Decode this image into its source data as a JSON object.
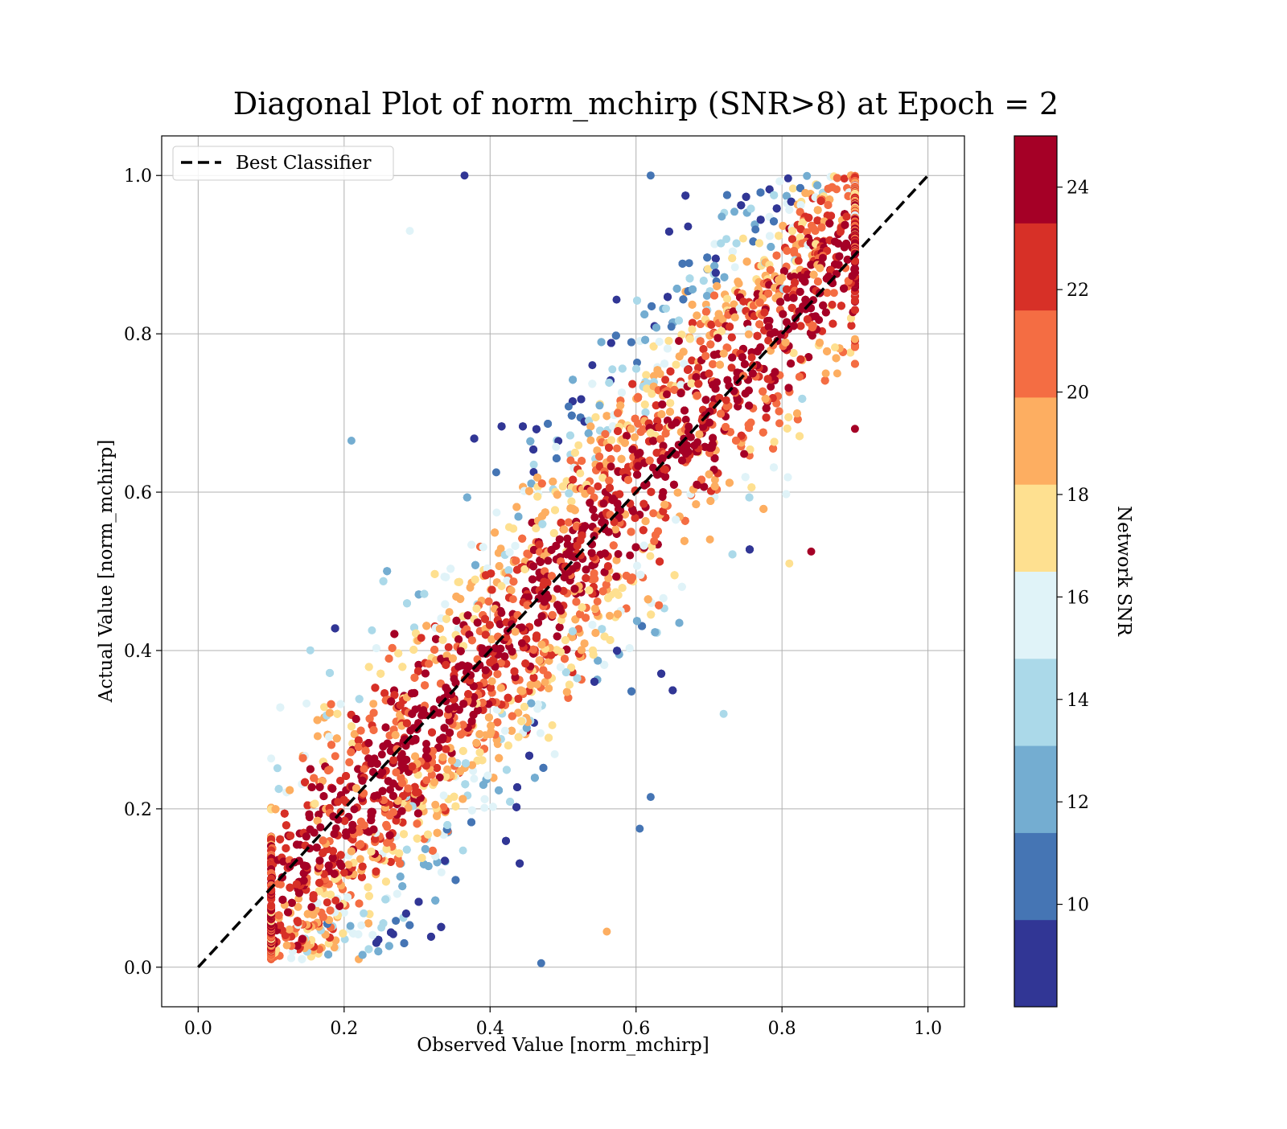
{
  "chart_data": {
    "type": "scatter",
    "title": "Diagonal Plot of norm_mchirp (SNR>8) at Epoch = 2",
    "xlabel": "Observed Value [norm_mchirp]",
    "ylabel": "Actual Value [norm_mchirp]",
    "xlim": [
      -0.05,
      1.05
    ],
    "ylim": [
      -0.05,
      1.05
    ],
    "x_ticks": [
      "0.0",
      "0.2",
      "0.4",
      "0.6",
      "0.8",
      "1.0"
    ],
    "y_ticks": [
      "0.0",
      "0.2",
      "0.4",
      "0.6",
      "0.8",
      "1.0"
    ],
    "grid": true,
    "legend": {
      "placement": "upper-left",
      "entries": [
        "Best Classifier"
      ]
    },
    "reference_line": {
      "name": "Best Classifier",
      "x": [
        0.0,
        1.0
      ],
      "y": [
        0.0,
        1.0
      ],
      "style": "dashed",
      "color": "#000000"
    },
    "colorbar": {
      "label": "Network SNR",
      "range": [
        8,
        25
      ],
      "ticks": [
        "10",
        "12",
        "14",
        "16",
        "18",
        "20",
        "22",
        "24"
      ],
      "bands": [
        {
          "from": 8,
          "to": 9.7,
          "color": "#313695"
        },
        {
          "from": 9.7,
          "to": 11.4,
          "color": "#4575b4"
        },
        {
          "from": 11.4,
          "to": 13.1,
          "color": "#74add1"
        },
        {
          "from": 13.1,
          "to": 14.8,
          "color": "#abd9e9"
        },
        {
          "from": 14.8,
          "to": 16.5,
          "color": "#e0f3f8"
        },
        {
          "from": 16.5,
          "to": 18.2,
          "color": "#fee090"
        },
        {
          "from": 18.2,
          "to": 19.9,
          "color": "#fdae61"
        },
        {
          "from": 19.9,
          "to": 21.6,
          "color": "#f46d43"
        },
        {
          "from": 21.6,
          "to": 23.3,
          "color": "#d73027"
        },
        {
          "from": 23.3,
          "to": 25,
          "color": "#a50026"
        }
      ]
    },
    "point_clusters": [
      {
        "description_x_range": [
          0.1,
          0.9
        ],
        "pattern": "dense band around y = x; high SNR (>=24) along the diagonal, lower SNR (blue) toward the band edges — upper-left for x 0.3–0.6, lower-right for x 0.4–0.6"
      }
    ],
    "sample_points": [
      {
        "x": 0.1,
        "y": 0.05,
        "snr": 24.5
      },
      {
        "x": 0.9,
        "y": 0.68,
        "snr": 24.5
      },
      {
        "x": 0.365,
        "y": 1.0,
        "snr": 9.0
      },
      {
        "x": 0.62,
        "y": 1.0,
        "snr": 11.0
      },
      {
        "x": 0.47,
        "y": 0.005,
        "snr": 11.0
      },
      {
        "x": 0.21,
        "y": 0.665,
        "snr": 12.5
      },
      {
        "x": 0.29,
        "y": 0.93,
        "snr": 16.0
      },
      {
        "x": 0.605,
        "y": 0.175,
        "snr": 11.0
      },
      {
        "x": 0.62,
        "y": 0.215,
        "snr": 11.0
      },
      {
        "x": 0.86,
        "y": 0.75,
        "snr": 19.0
      },
      {
        "x": 0.56,
        "y": 0.045,
        "snr": 19.5
      },
      {
        "x": 0.22,
        "y": 0.01,
        "snr": 19.0
      },
      {
        "x": 0.84,
        "y": 0.525,
        "snr": 24.5
      },
      {
        "x": 0.72,
        "y": 0.32,
        "snr": 13.5
      },
      {
        "x": 0.81,
        "y": 0.51,
        "snr": 16.5
      }
    ]
  }
}
